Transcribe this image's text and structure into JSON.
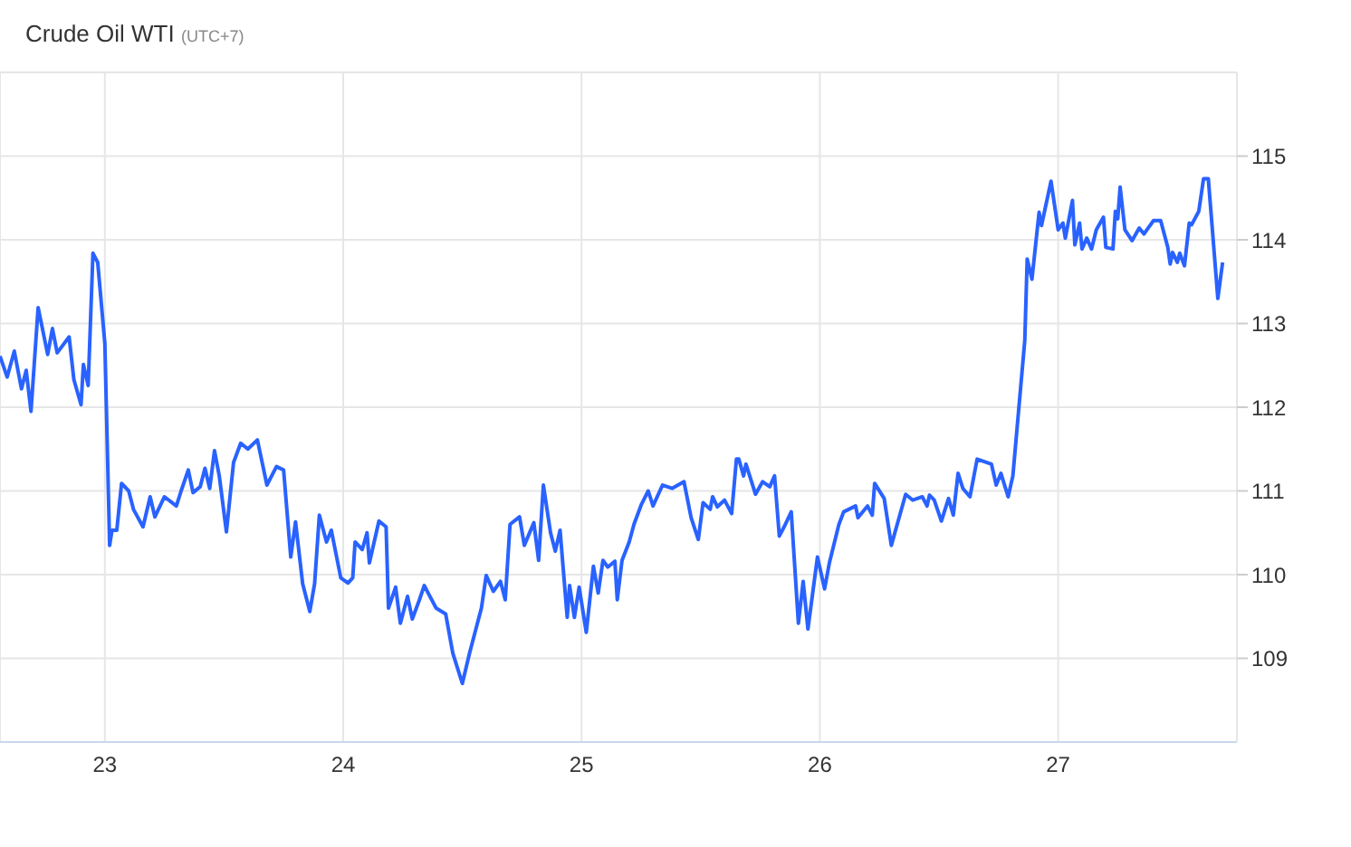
{
  "chart_data": {
    "type": "line",
    "title": "Crude Oil WTI",
    "subtitle": "(UTC+7)",
    "xlim": [
      22.56,
      27.75
    ],
    "xticks": [
      23,
      24,
      25,
      26,
      27
    ],
    "ylim": [
      108,
      116
    ],
    "yticks": [
      109,
      110,
      111,
      112,
      113,
      114,
      115
    ],
    "grid": true,
    "series": [
      {
        "color": "#2962ff",
        "x": [
          22.56,
          22.59,
          22.62,
          22.65,
          22.67,
          22.69,
          22.72,
          22.76,
          22.78,
          22.8,
          22.85,
          22.87,
          22.9,
          22.91,
          22.93,
          22.95,
          22.97,
          23.0,
          23.02,
          23.03,
          23.05,
          23.07,
          23.1,
          23.12,
          23.16,
          23.19,
          23.21,
          23.25,
          23.3,
          23.32,
          23.35,
          23.37,
          23.4,
          23.42,
          23.44,
          23.46,
          23.48,
          23.51,
          23.54,
          23.57,
          23.6,
          23.64,
          23.68,
          23.72,
          23.75,
          23.78,
          23.8,
          23.83,
          23.86,
          23.88,
          23.9,
          23.93,
          23.95,
          23.99,
          24.02,
          24.04,
          24.05,
          24.08,
          24.1,
          24.11,
          24.15,
          24.18,
          24.19,
          24.22,
          24.24,
          24.27,
          24.29,
          24.32,
          24.34,
          24.36,
          24.39,
          24.43,
          24.46,
          24.5,
          24.53,
          24.58,
          24.6,
          24.63,
          24.66,
          24.68,
          24.7,
          24.74,
          24.76,
          24.8,
          24.82,
          24.84,
          24.87,
          24.89,
          24.91,
          24.94,
          24.95,
          24.97,
          24.99,
          25.02,
          25.05,
          25.07,
          25.09,
          25.11,
          25.14,
          25.15,
          25.17,
          25.2,
          25.22,
          25.25,
          25.28,
          25.3,
          25.34,
          25.38,
          25.43,
          25.46,
          25.49,
          25.51,
          25.54,
          25.55,
          25.57,
          25.6,
          25.63,
          25.65,
          25.66,
          25.68,
          25.69,
          25.73,
          25.76,
          25.79,
          25.81,
          25.83,
          25.85,
          25.88,
          25.91,
          25.93,
          25.95,
          25.99,
          26.02,
          26.04,
          26.08,
          26.1,
          26.15,
          26.16,
          26.2,
          26.22,
          26.23,
          26.27,
          26.3,
          26.36,
          26.39,
          26.43,
          26.45,
          26.46,
          26.48,
          26.51,
          26.54,
          26.56,
          26.58,
          26.6,
          26.63,
          26.66,
          26.72,
          26.74,
          26.76,
          26.79,
          26.81,
          26.86,
          26.87,
          26.89,
          26.92,
          26.93,
          26.97,
          27.0,
          27.02,
          27.03,
          27.06,
          27.07,
          27.09,
          27.1,
          27.12,
          27.14,
          27.16,
          27.19,
          27.2,
          27.23,
          27.24,
          27.25,
          27.26,
          27.28,
          27.31,
          27.34,
          27.36,
          27.4,
          27.43,
          27.46,
          27.47,
          27.48,
          27.5,
          27.51,
          27.53,
          27.55,
          27.56,
          27.59,
          27.61,
          27.63,
          27.67,
          27.69
        ],
        "values": [
          112.61,
          112.36,
          112.67,
          112.22,
          112.44,
          111.95,
          113.19,
          112.63,
          112.94,
          112.65,
          112.84,
          112.33,
          112.03,
          112.51,
          112.26,
          113.84,
          113.73,
          112.76,
          110.35,
          110.53,
          110.53,
          111.09,
          111.0,
          110.78,
          110.57,
          110.93,
          110.69,
          110.93,
          110.82,
          111.0,
          111.25,
          110.98,
          111.05,
          111.27,
          111.03,
          111.48,
          111.18,
          110.51,
          111.34,
          111.57,
          111.5,
          111.61,
          111.07,
          111.29,
          111.25,
          110.21,
          110.63,
          109.89,
          109.56,
          109.89,
          110.71,
          110.39,
          110.53,
          109.96,
          109.9,
          109.96,
          110.39,
          110.3,
          110.5,
          110.14,
          110.64,
          110.57,
          109.6,
          109.85,
          109.42,
          109.74,
          109.47,
          109.7,
          109.87,
          109.76,
          109.6,
          109.53,
          109.06,
          108.7,
          109.06,
          109.6,
          109.99,
          109.8,
          109.92,
          109.7,
          110.6,
          110.69,
          110.35,
          110.62,
          110.17,
          111.07,
          110.5,
          110.28,
          110.53,
          109.49,
          109.87,
          109.49,
          109.85,
          109.31,
          110.1,
          109.78,
          110.17,
          110.09,
          110.16,
          109.7,
          110.17,
          110.39,
          110.6,
          110.83,
          111.0,
          110.82,
          111.07,
          111.03,
          111.11,
          110.68,
          110.42,
          110.86,
          110.78,
          110.93,
          110.81,
          110.89,
          110.73,
          111.38,
          111.38,
          111.18,
          111.32,
          110.96,
          111.11,
          111.05,
          111.18,
          110.46,
          110.57,
          110.75,
          109.42,
          109.92,
          109.35,
          110.21,
          109.83,
          110.14,
          110.6,
          110.75,
          110.82,
          110.68,
          110.82,
          110.71,
          111.09,
          110.91,
          110.35,
          110.96,
          110.89,
          110.93,
          110.82,
          110.95,
          110.89,
          110.64,
          110.91,
          110.71,
          111.21,
          111.03,
          110.93,
          111.38,
          111.32,
          111.07,
          111.21,
          110.93,
          111.18,
          112.8,
          113.77,
          113.53,
          114.33,
          114.17,
          114.7,
          114.12,
          114.2,
          114.02,
          114.47,
          113.94,
          114.2,
          113.89,
          114.02,
          113.89,
          114.12,
          114.27,
          113.91,
          113.89,
          114.34,
          114.25,
          114.63,
          114.12,
          113.99,
          114.14,
          114.07,
          114.23,
          114.23,
          113.91,
          113.71,
          113.85,
          113.73,
          113.84,
          113.69,
          114.2,
          114.18,
          114.34,
          114.73,
          114.73,
          113.3,
          113.73
        ]
      }
    ]
  }
}
